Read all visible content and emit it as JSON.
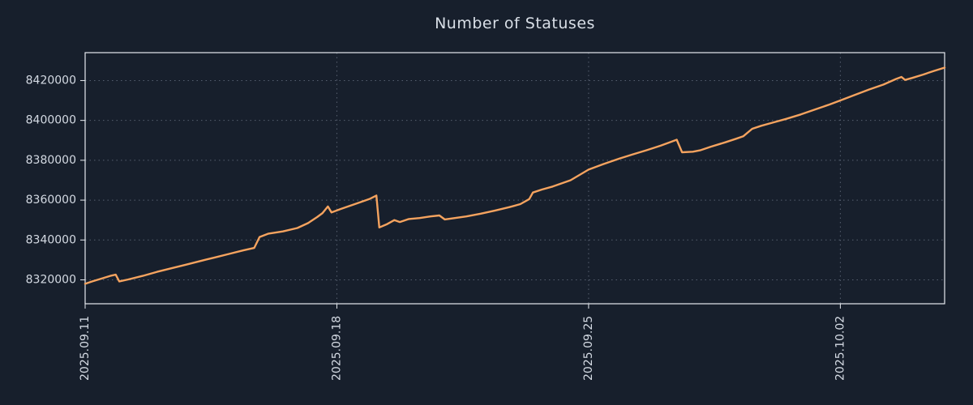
{
  "chart_data": {
    "type": "line",
    "title": "Number of Statuses",
    "series_name": "statuses",
    "x_unit": "days since first tick",
    "x_tick_days": [
      0,
      7,
      14,
      21
    ],
    "x_tick_labels": [
      "2025.09.11",
      "2025.09.18",
      "2025.09.25",
      "2025.10.02"
    ],
    "y_ticks": [
      8320000,
      8340000,
      8360000,
      8380000,
      8400000,
      8420000
    ],
    "y_tick_labels": [
      "8320000",
      "8340000",
      "8360000",
      "8380000",
      "8400000",
      "8420000"
    ],
    "xlim": [
      0,
      23.9
    ],
    "ylim": [
      8308000,
      8434000
    ],
    "grid": true,
    "legend": false,
    "points": [
      [
        0.0,
        8318000
      ],
      [
        0.2,
        8319200
      ],
      [
        0.45,
        8320600
      ],
      [
        0.7,
        8322000
      ],
      [
        0.85,
        8322600
      ],
      [
        0.95,
        8319200
      ],
      [
        1.2,
        8320200
      ],
      [
        1.6,
        8322000
      ],
      [
        2.0,
        8324000
      ],
      [
        2.4,
        8325800
      ],
      [
        2.8,
        8327600
      ],
      [
        3.2,
        8329400
      ],
      [
        3.6,
        8331200
      ],
      [
        4.0,
        8333000
      ],
      [
        4.4,
        8334800
      ],
      [
        4.7,
        8336000
      ],
      [
        4.85,
        8341500
      ],
      [
        5.1,
        8343200
      ],
      [
        5.5,
        8344300
      ],
      [
        5.9,
        8346000
      ],
      [
        6.2,
        8348500
      ],
      [
        6.45,
        8351500
      ],
      [
        6.6,
        8353500
      ],
      [
        6.75,
        8356800
      ],
      [
        6.85,
        8353800
      ],
      [
        7.1,
        8355500
      ],
      [
        7.5,
        8358000
      ],
      [
        7.9,
        8360500
      ],
      [
        8.1,
        8362300
      ],
      [
        8.18,
        8346300
      ],
      [
        8.4,
        8348000
      ],
      [
        8.6,
        8350000
      ],
      [
        8.75,
        8349000
      ],
      [
        9.0,
        8350500
      ],
      [
        9.3,
        8351000
      ],
      [
        9.6,
        8351800
      ],
      [
        9.85,
        8352300
      ],
      [
        10.0,
        8350300
      ],
      [
        10.2,
        8350800
      ],
      [
        10.6,
        8351800
      ],
      [
        11.0,
        8353200
      ],
      [
        11.4,
        8354800
      ],
      [
        11.8,
        8356500
      ],
      [
        12.1,
        8358000
      ],
      [
        12.35,
        8360500
      ],
      [
        12.45,
        8363800
      ],
      [
        12.7,
        8365300
      ],
      [
        13.0,
        8366800
      ],
      [
        13.5,
        8370000
      ],
      [
        14.0,
        8375300
      ],
      [
        14.4,
        8378000
      ],
      [
        14.8,
        8380500
      ],
      [
        15.2,
        8382800
      ],
      [
        15.6,
        8385000
      ],
      [
        16.0,
        8387300
      ],
      [
        16.3,
        8389300
      ],
      [
        16.45,
        8390300
      ],
      [
        16.6,
        8384000
      ],
      [
        16.9,
        8384300
      ],
      [
        17.1,
        8385000
      ],
      [
        17.4,
        8386800
      ],
      [
        17.8,
        8389000
      ],
      [
        18.1,
        8390800
      ],
      [
        18.3,
        8392000
      ],
      [
        18.55,
        8395800
      ],
      [
        18.8,
        8397300
      ],
      [
        19.1,
        8398800
      ],
      [
        19.5,
        8400800
      ],
      [
        19.9,
        8403000
      ],
      [
        20.3,
        8405500
      ],
      [
        20.7,
        8408000
      ],
      [
        21.0,
        8410000
      ],
      [
        21.4,
        8412800
      ],
      [
        21.8,
        8415500
      ],
      [
        22.2,
        8418000
      ],
      [
        22.55,
        8420800
      ],
      [
        22.7,
        8421800
      ],
      [
        22.8,
        8420300
      ],
      [
        23.0,
        8421300
      ],
      [
        23.3,
        8423000
      ],
      [
        23.6,
        8424800
      ],
      [
        23.9,
        8426500
      ]
    ],
    "colors": {
      "background": "#171f2c",
      "line": "#f5a35f",
      "grid": "#8a94a6",
      "frame": "#e6eaef",
      "text": "#d4dae3"
    }
  }
}
